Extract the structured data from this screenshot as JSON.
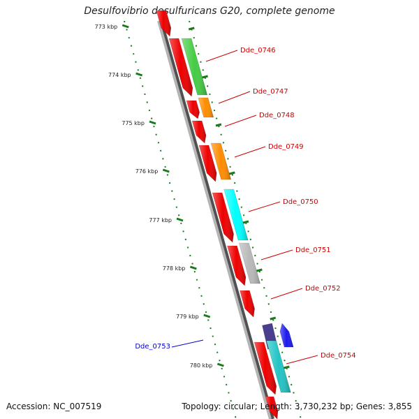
{
  "title": "Desulfovibrio desulfuricans G20, complete genome",
  "footer": {
    "accession": "Accession: NC_007519",
    "topology": "Topology: circular; Length: 3,730,232 bp; Genes: 3,855"
  },
  "colors": {
    "backbone": "#a0a0a0",
    "tick": "#1a7a1a",
    "label_red": "#cc0000",
    "label_blue": "#0000cc"
  },
  "ticks": [
    {
      "label": "773 kbp",
      "kbp": 773
    },
    {
      "label": "774 kbp",
      "kbp": 774
    },
    {
      "label": "775 kbp",
      "kbp": 775
    },
    {
      "label": "776 kbp",
      "kbp": 776
    },
    {
      "label": "777 kbp",
      "kbp": 777
    },
    {
      "label": "778 kbp",
      "kbp": 778
    },
    {
      "label": "779 kbp",
      "kbp": 779
    },
    {
      "label": "780 kbp",
      "kbp": 780
    }
  ],
  "genes": [
    {
      "name": "Dde_0746",
      "cds_color": "#44cc44",
      "strand": "forward"
    },
    {
      "name": "Dde_0747",
      "cds_color": "#ff8c00",
      "strand": "forward"
    },
    {
      "name": "Dde_0748",
      "cds_color": "",
      "strand": "forward"
    },
    {
      "name": "Dde_0749",
      "cds_color": "#ff8c00",
      "strand": "forward"
    },
    {
      "name": "Dde_0750",
      "cds_color": "#00ffff",
      "strand": "forward"
    },
    {
      "name": "Dde_0751",
      "cds_color": "#b8b8b8",
      "strand": "forward"
    },
    {
      "name": "Dde_0752",
      "cds_color": "",
      "strand": "forward"
    },
    {
      "name": "Dde_0753",
      "cds_color": "#4a3f8f",
      "strand": "reverse"
    },
    {
      "name": "Dde_0754",
      "cds_color": "#22c4c4",
      "strand": "forward"
    }
  ]
}
